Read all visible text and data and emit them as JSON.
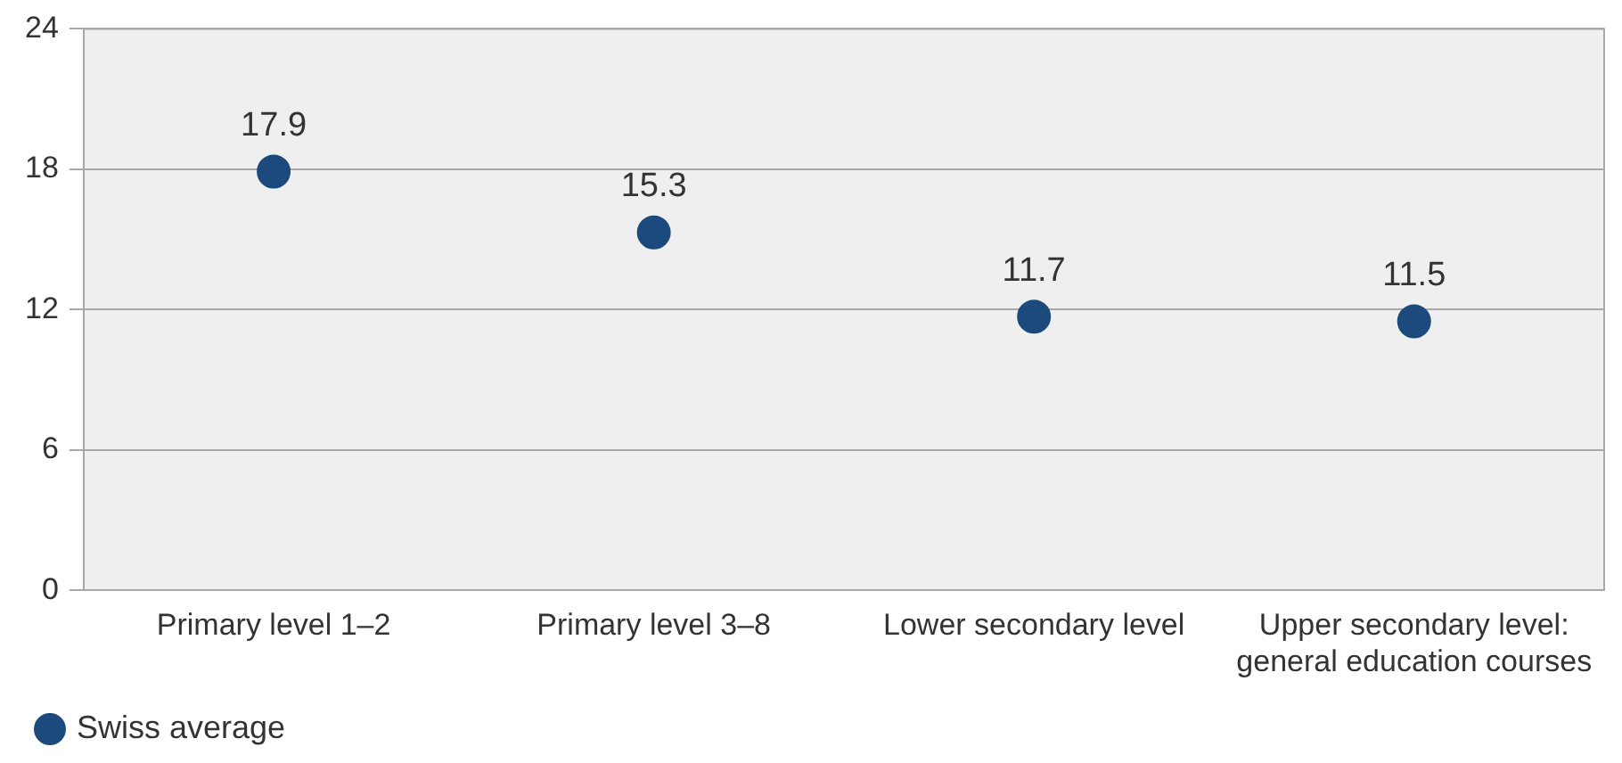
{
  "chart_data": {
    "type": "scatter",
    "categories": [
      "Primary level 1–2",
      "Primary level 3–8",
      "Lower secondary level",
      "Upper secondary level: general education courses"
    ],
    "series": [
      {
        "name": "Swiss average",
        "color": "#1d4a7d",
        "values": [
          17.9,
          15.3,
          11.7,
          11.5
        ]
      }
    ],
    "ylim": [
      0,
      24
    ],
    "yticks": [
      0,
      6,
      12,
      18,
      24
    ],
    "grid": "y",
    "legend": "bottom left",
    "marker": "circle",
    "data_labels": true
  }
}
